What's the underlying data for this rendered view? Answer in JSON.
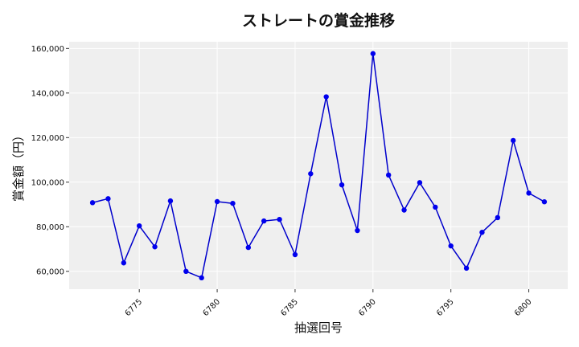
{
  "chart_data": {
    "type": "line",
    "title": "ストレートの賞金推移",
    "xlabel": "抽選回号",
    "ylabel": "賞金額（円）",
    "x_ticks": [
      6775,
      6780,
      6785,
      6790,
      6795,
      6800
    ],
    "y_ticks": [
      60000,
      80000,
      100000,
      120000,
      140000,
      160000
    ],
    "y_tick_labels": [
      "60,000",
      "80,000",
      "100,000",
      "120,000",
      "140,000",
      "160,000"
    ],
    "xlim": [
      6770.5,
      6802.5
    ],
    "ylim": [
      52000,
      163000
    ],
    "grid": true,
    "colors": {
      "line": "#0000cc",
      "marker": "#0000ee",
      "background": "#efefef",
      "grid": "#ffffff"
    },
    "series": [
      {
        "x": [
          6772,
          6773,
          6774,
          6775,
          6776,
          6777,
          6778,
          6779,
          6780,
          6781,
          6782,
          6783,
          6784,
          6785,
          6786,
          6787,
          6788,
          6789,
          6790,
          6791,
          6792,
          6793,
          6794,
          6795,
          6796,
          6797,
          6798,
          6799,
          6800,
          6801
        ],
        "values": [
          90800,
          92600,
          63800,
          80400,
          71000,
          91600,
          60000,
          57100,
          91300,
          90500,
          70700,
          82600,
          83300,
          67500,
          103800,
          138300,
          98800,
          78300,
          157700,
          103200,
          87500,
          99800,
          88800,
          71400,
          61400,
          77500,
          84100,
          118700,
          95100,
          91200
        ]
      }
    ]
  }
}
